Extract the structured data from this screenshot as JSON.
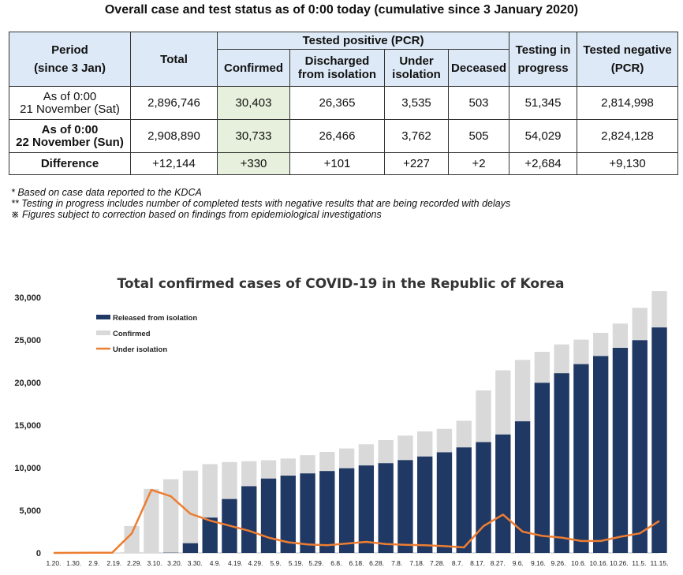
{
  "page_title": "Overall case and test status as of 0:00 today (cumulative since 3 January 2020)",
  "table": {
    "headers": {
      "period": [
        "Period",
        "(since 3 Jan)"
      ],
      "total": "Total",
      "tested_positive": "Tested positive (PCR)",
      "confirmed": "Confirmed",
      "discharged": [
        "Discharged",
        "from isolation"
      ],
      "under": [
        "Under",
        "isolation"
      ],
      "deceased": "Deceased",
      "testing": [
        "Testing in",
        "progress"
      ],
      "negative": [
        "Tested negative",
        "(PCR)"
      ]
    },
    "rows": [
      {
        "period": [
          "As of 0:00",
          "21 November (Sat)"
        ],
        "total": "2,896,746",
        "confirmed": "30,403",
        "discharged": "26,365",
        "under": "3,535",
        "deceased": "503",
        "testing": "51,345",
        "negative": "2,814,998"
      },
      {
        "period": [
          "As of 0:00",
          "22 November (Sun)"
        ],
        "total": "2,908,890",
        "confirmed": "30,733",
        "discharged": "26,466",
        "under": "3,762",
        "deceased": "505",
        "testing": "54,029",
        "negative": "2,824,128"
      },
      {
        "period": [
          "Difference"
        ],
        "total": "+12,144",
        "confirmed": "+330",
        "discharged": "+101",
        "under": "+227",
        "deceased": "+2",
        "testing": "+2,684",
        "negative": "+9,130"
      }
    ]
  },
  "notes": [
    "* Based on case data reported to the KDCA",
    "** Testing in progress includes number of completed tests with negative results that are being recorded with delays",
    "※ Figures subject to correction based on findings from epidemiological investigations"
  ],
  "chart_data": {
    "type": "bar",
    "title": "Total confirmed cases of COVID-19 in the Republic of Korea",
    "xlabel": "",
    "ylabel": "",
    "ylim": [
      0,
      30000
    ],
    "yticks": [
      "0",
      "5,000",
      "10,000",
      "15,000",
      "20,000",
      "25,000",
      "30,000"
    ],
    "x_tick_labels": [
      "1.20.",
      "1.30.",
      "2.9.",
      "2.19.",
      "2.29.",
      "3.10.",
      "3.20.",
      "3.30.",
      "4.9.",
      "4.19.",
      "4.29.",
      "5.9.",
      "5.19.",
      "5.29.",
      "6.8.",
      "6.18.",
      "6.28.",
      "7.8.",
      "7.18.",
      "7.28.",
      "8.7.",
      "8.17.",
      "8.27.",
      "9.6.",
      "9.16.",
      "9.26.",
      "10.6.",
      "10.16.",
      "10.26.",
      "11.5.",
      "11.15."
    ],
    "legend_position": "top-left",
    "grid": false,
    "series": [
      {
        "name": "Released from isolation",
        "style": "bar",
        "color": "#1f3864",
        "values": [
          0,
          0,
          0,
          0,
          0,
          0,
          30,
          1137,
          4144,
          6325,
          7829,
          8727,
          9072,
          9332,
          9610,
          9938,
          10267,
          10531,
          10895,
          11317,
          11811,
          12383,
          13007,
          13901,
          15447,
          19970,
          21090,
          22158,
          23109,
          24073,
          24970,
          26466
        ]
      },
      {
        "name": "Confirmed",
        "style": "bar",
        "color": "#d9d9d9",
        "values": [
          1,
          11,
          27,
          31,
          3150,
          7513,
          8652,
          9661,
          10423,
          10661,
          10765,
          10874,
          11078,
          11468,
          11852,
          12257,
          12757,
          13244,
          13771,
          14269,
          14562,
          15515,
          19077,
          21432,
          22657,
          23611,
          24476,
          25035,
          25836,
          26925,
          28769,
          30733
        ]
      },
      {
        "name": "Under isolation",
        "style": "line",
        "color": "#ed7d31",
        "values": [
          1,
          11,
          27,
          31,
          2300,
          7400,
          6650,
          4600,
          3800,
          3200,
          2600,
          1800,
          1250,
          1000,
          900,
          1100,
          1300,
          1050,
          950,
          900,
          800,
          650,
          3150,
          4500,
          2500,
          2000,
          1800,
          1400,
          1400,
          1900,
          2300,
          3762
        ]
      }
    ]
  }
}
